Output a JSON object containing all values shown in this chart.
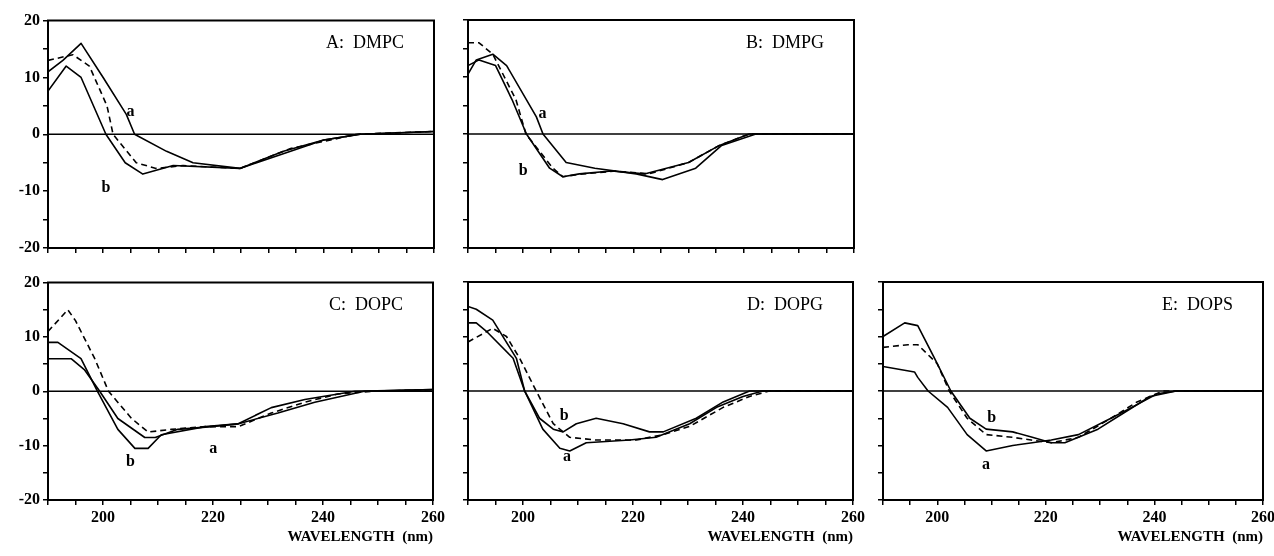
{
  "chart_data": [
    {
      "type": "line",
      "title": "A:  DMPC",
      "xlim": [
        190,
        260
      ],
      "ylim": [
        -20,
        20
      ],
      "xticks": [
        {
          "value": 190,
          "label": null
        },
        {
          "value": 195,
          "label": null
        },
        {
          "value": 200,
          "label": null
        },
        {
          "value": 205,
          "label": null
        },
        {
          "value": 210,
          "label": null
        },
        {
          "value": 215,
          "label": null
        },
        {
          "value": 220,
          "label": null
        },
        {
          "value": 225,
          "label": null
        },
        {
          "value": 230,
          "label": null
        },
        {
          "value": 235,
          "label": null
        },
        {
          "value": 240,
          "label": null
        },
        {
          "value": 245,
          "label": null
        },
        {
          "value": 250,
          "label": null
        },
        {
          "value": 255,
          "label": null
        },
        {
          "value": 260,
          "label": null
        }
      ],
      "yticks": [
        -20,
        {
          "value": -15,
          "label": null
        },
        -10,
        {
          "value": -5,
          "label": null
        },
        0,
        {
          "value": 5,
          "label": null
        },
        10,
        {
          "value": 15,
          "label": null
        },
        20
      ],
      "tick_labels": "y",
      "grid": false,
      "legend": false,
      "ref_lines": [
        {
          "axis": "y",
          "value": 0,
          "color": "#000000"
        }
      ],
      "series": [
        {
          "name": "a",
          "color": "#000000",
          "line_style": "solid",
          "x": [
            190,
            192.7,
            196,
            200,
            204.2,
            205.7,
            211.5,
            216.3,
            224.8,
            232.7,
            240,
            246.6,
            260
          ],
          "values": [
            11,
            13,
            16,
            10,
            3.5,
            0,
            -3,
            -5,
            -6,
            -3,
            -1,
            0,
            0.5
          ]
        },
        {
          "name": "b",
          "color": "#000000",
          "line_style": "solid",
          "x": [
            190,
            193.3,
            196,
            200.5,
            204,
            207.2,
            212.7,
            224.8,
            234,
            240,
            246.6,
            260
          ],
          "values": [
            7.6,
            12,
            10,
            0,
            -5,
            -7,
            -5.5,
            -6,
            -3,
            -1,
            0,
            0.5
          ]
        },
        {
          "color": "#000000",
          "line_style": "dashed",
          "x": [
            190,
            194.5,
            197.5,
            200.7,
            201.8,
            206,
            209.6,
            214.5,
            224.8,
            234,
            246,
            260
          ],
          "values": [
            13,
            14,
            12,
            5,
            0,
            -5,
            -6,
            -5.5,
            -6,
            -2.5,
            0,
            0.5
          ]
        }
      ]
    },
    {
      "type": "line",
      "title": "B:  DMPG",
      "xlim": [
        190,
        260
      ],
      "ylim": [
        -20,
        20
      ],
      "xticks": [
        190,
        195,
        200,
        205,
        210,
        215,
        220,
        225,
        230,
        235,
        240,
        245,
        250,
        255,
        260
      ],
      "yticks": [
        -20,
        -15,
        -10,
        -5,
        0,
        5,
        10,
        15,
        20
      ],
      "tick_labels": false,
      "grid": false,
      "legend": false,
      "ref_lines": [
        {
          "axis": "y",
          "value": 0,
          "color": "#000000"
        }
      ],
      "series": [
        {
          "name": "a",
          "color": "#000000",
          "line_style": "solid",
          "x": [
            190,
            191.5,
            194.5,
            197,
            202.4,
            203.6,
            207.8,
            213,
            220.5,
            225.3,
            231.3,
            236,
            242.2,
            260
          ],
          "values": [
            10.5,
            13,
            14,
            12,
            3,
            0,
            -5,
            -6,
            -7,
            -8,
            -6,
            -2,
            0,
            0
          ]
        },
        {
          "name": "b",
          "color": "#000000",
          "line_style": "solid",
          "x": [
            190,
            192,
            195,
            198,
            200.6,
            204.8,
            207.2,
            210.2,
            216,
            222,
            230,
            235.6,
            241,
            260
          ],
          "values": [
            12,
            13,
            12,
            6,
            0,
            -6,
            -7.5,
            -7,
            -6.5,
            -7,
            -5,
            -2,
            0,
            0
          ]
        },
        {
          "color": "#000000",
          "line_style": "dashed",
          "x": [
            190,
            192,
            194.5,
            198.7,
            200.5,
            205.4,
            207.2,
            210.8,
            216.8,
            222.8,
            230,
            235.6,
            241,
            260
          ],
          "values": [
            16,
            16,
            14,
            6,
            0,
            -6,
            -7.5,
            -7,
            -6.5,
            -7,
            -5,
            -2,
            0,
            0
          ]
        }
      ]
    },
    {
      "type": "line",
      "title": "C:  DOPC",
      "xlabel": "WAVELENGTH  (nm)",
      "xlim": [
        190,
        260
      ],
      "ylim": [
        -20,
        20
      ],
      "xticks": [
        {
          "value": 190,
          "label": null
        },
        {
          "value": 195,
          "label": null
        },
        200,
        {
          "value": 205,
          "label": null
        },
        {
          "value": 210,
          "label": null
        },
        {
          "value": 215,
          "label": null
        },
        220,
        {
          "value": 225,
          "label": null
        },
        {
          "value": 230,
          "label": null
        },
        {
          "value": 235,
          "label": null
        },
        240,
        {
          "value": 245,
          "label": null
        },
        {
          "value": 250,
          "label": null
        },
        {
          "value": 255,
          "label": null
        },
        260
      ],
      "yticks": [
        -20,
        {
          "value": -15,
          "label": null
        },
        -10,
        {
          "value": -5,
          "label": null
        },
        0,
        {
          "value": 5,
          "label": null
        },
        10,
        {
          "value": 15,
          "label": null
        },
        20
      ],
      "grid": false,
      "legend": false,
      "ref_lines": [
        {
          "axis": "y",
          "value": 0,
          "color": "#000000"
        }
      ],
      "series": [
        {
          "name": "a",
          "color": "#000000",
          "line_style": "solid",
          "x": [
            190,
            194.2,
            196.6,
            199.4,
            202.7,
            207.6,
            209.5,
            213.6,
            219.7,
            224.5,
            231.8,
            238.5,
            247.5,
            260
          ],
          "values": [
            6,
            6,
            4,
            0,
            -5,
            -8.5,
            -8.5,
            -7,
            -6.5,
            -6,
            -4,
            -2,
            0,
            0.3
          ]
        },
        {
          "name": "b",
          "color": "#000000",
          "line_style": "solid",
          "x": [
            190,
            191.8,
            196,
            199,
            202.7,
            205.8,
            208.2,
            210.6,
            218.6,
            224.5,
            230.6,
            236.7,
            239.7,
            245.8,
            260
          ],
          "values": [
            9,
            9,
            6,
            0,
            -7,
            -10.5,
            -10.5,
            -8,
            -6.5,
            -6,
            -3,
            -1.5,
            -1,
            0,
            0.3
          ]
        },
        {
          "color": "#000000",
          "line_style": "dashed",
          "x": [
            190,
            193.6,
            195,
            198.5,
            201,
            205.2,
            208.2,
            212.4,
            218.6,
            224.6,
            230.6,
            236.7,
            242.7,
            248.8,
            260
          ],
          "values": [
            11,
            15,
            13,
            6,
            0,
            -5,
            -7.5,
            -7,
            -6.5,
            -6.5,
            -4,
            -2,
            -0.5,
            0,
            0.3
          ]
        }
      ]
    },
    {
      "type": "line",
      "title": "D:  DOPG",
      "xlabel": "WAVELENGTH  (nm)",
      "xlim": [
        190,
        260
      ],
      "ylim": [
        -20,
        20
      ],
      "xticks": [
        {
          "value": 190,
          "label": null
        },
        {
          "value": 195,
          "label": null
        },
        200,
        {
          "value": 205,
          "label": null
        },
        {
          "value": 210,
          "label": null
        },
        {
          "value": 215,
          "label": null
        },
        220,
        {
          "value": 225,
          "label": null
        },
        {
          "value": 230,
          "label": null
        },
        {
          "value": 235,
          "label": null
        },
        240,
        {
          "value": 245,
          "label": null
        },
        {
          "value": 250,
          "label": null
        },
        {
          "value": 255,
          "label": null
        },
        260
      ],
      "yticks": [
        -20,
        -15,
        -10,
        -5,
        0,
        5,
        10,
        15,
        20
      ],
      "tick_labels": "x",
      "grid": false,
      "legend": false,
      "ref_lines": [
        {
          "axis": "y",
          "value": 0,
          "color": "#000000"
        }
      ],
      "series": [
        {
          "name": "a",
          "color": "#000000",
          "line_style": "solid",
          "x": [
            190,
            191.5,
            193.3,
            198.2,
            200.3,
            203.6,
            206.7,
            208.5,
            211.5,
            219.4,
            224.2,
            230.3,
            235.2,
            240,
            243.6,
            260
          ],
          "values": [
            12.5,
            12.5,
            11,
            6,
            0,
            -7,
            -10.5,
            -11,
            -9.5,
            -9,
            -8.5,
            -6,
            -3,
            -1,
            0,
            0
          ]
        },
        {
          "name": "b",
          "color": "#000000",
          "line_style": "solid",
          "x": [
            190,
            191.5,
            194.5,
            198.8,
            200.3,
            203,
            205.5,
            207.3,
            209.7,
            213.3,
            218.2,
            223,
            225.5,
            231.5,
            236.4,
            241.2,
            260
          ],
          "values": [
            15.5,
            15,
            13,
            6,
            0,
            -5,
            -7,
            -7.5,
            -6,
            -5,
            -6,
            -7.5,
            -7.5,
            -5,
            -2,
            0,
            0
          ]
        },
        {
          "color": "#000000",
          "line_style": "dashed",
          "x": [
            190,
            194.5,
            197,
            199.4,
            202.4,
            205.5,
            208.5,
            213.3,
            220.6,
            225.5,
            230.3,
            236.4,
            241.2,
            244.8,
            260
          ],
          "values": [
            9,
            11.5,
            10,
            6,
            0,
            -6,
            -8.5,
            -9,
            -9,
            -8,
            -6.5,
            -3,
            -1,
            0,
            0
          ]
        }
      ]
    },
    {
      "type": "line",
      "title": "E:  DOPS",
      "xlabel": "WAVELENGTH  (nm)",
      "xlim": [
        190,
        260
      ],
      "ylim": [
        -20,
        20
      ],
      "xticks": [
        {
          "value": 190,
          "label": null
        },
        {
          "value": 195,
          "label": null
        },
        200,
        {
          "value": 205,
          "label": null
        },
        {
          "value": 210,
          "label": null
        },
        {
          "value": 215,
          "label": null
        },
        220,
        {
          "value": 225,
          "label": null
        },
        {
          "value": 230,
          "label": null
        },
        {
          "value": 235,
          "label": null
        },
        240,
        {
          "value": 245,
          "label": null
        },
        {
          "value": 250,
          "label": null
        },
        {
          "value": 255,
          "label": null
        },
        260
      ],
      "yticks": [
        -20,
        -15,
        -10,
        -5,
        0,
        5,
        10,
        15,
        20
      ],
      "tick_labels": "x",
      "grid": false,
      "legend": false,
      "ref_lines": [
        {
          "axis": "y",
          "value": 0,
          "color": "#000000"
        }
      ],
      "series": [
        {
          "name": "a",
          "color": "#000000",
          "line_style": "solid",
          "x": [
            190,
            195.8,
            196.4,
            198.3,
            201.9,
            205.5,
            209,
            213.9,
            217.5,
            221,
            226,
            232,
            236.8,
            240.5,
            244,
            260
          ],
          "values": [
            4.5,
            3.5,
            2.5,
            0,
            -3,
            -8,
            -11,
            -10,
            -9.5,
            -9,
            -8,
            -5,
            -2.5,
            -0.5,
            0,
            0
          ]
        },
        {
          "name": "b",
          "color": "#000000",
          "line_style": "solid",
          "x": [
            190,
            194,
            196.4,
            199.5,
            202.5,
            206,
            209,
            213.9,
            217.5,
            221,
            223.5,
            229.6,
            234.4,
            239.2,
            244,
            260
          ],
          "values": [
            10,
            12.5,
            12,
            6,
            0,
            -5,
            -7,
            -7.5,
            -8.5,
            -9.5,
            -9.5,
            -7,
            -4,
            -1,
            0,
            0
          ]
        },
        {
          "color": "#000000",
          "line_style": "dashed",
          "x": [
            190,
            194.6,
            196.4,
            200,
            202.2,
            205.5,
            209,
            213.9,
            217.3,
            221,
            226,
            232,
            236.8,
            241.6,
            260
          ],
          "values": [
            8,
            8.5,
            8.5,
            5,
            0,
            -5,
            -8,
            -8.5,
            -9,
            -9.5,
            -8.5,
            -5,
            -2,
            0,
            0
          ]
        }
      ]
    }
  ]
}
